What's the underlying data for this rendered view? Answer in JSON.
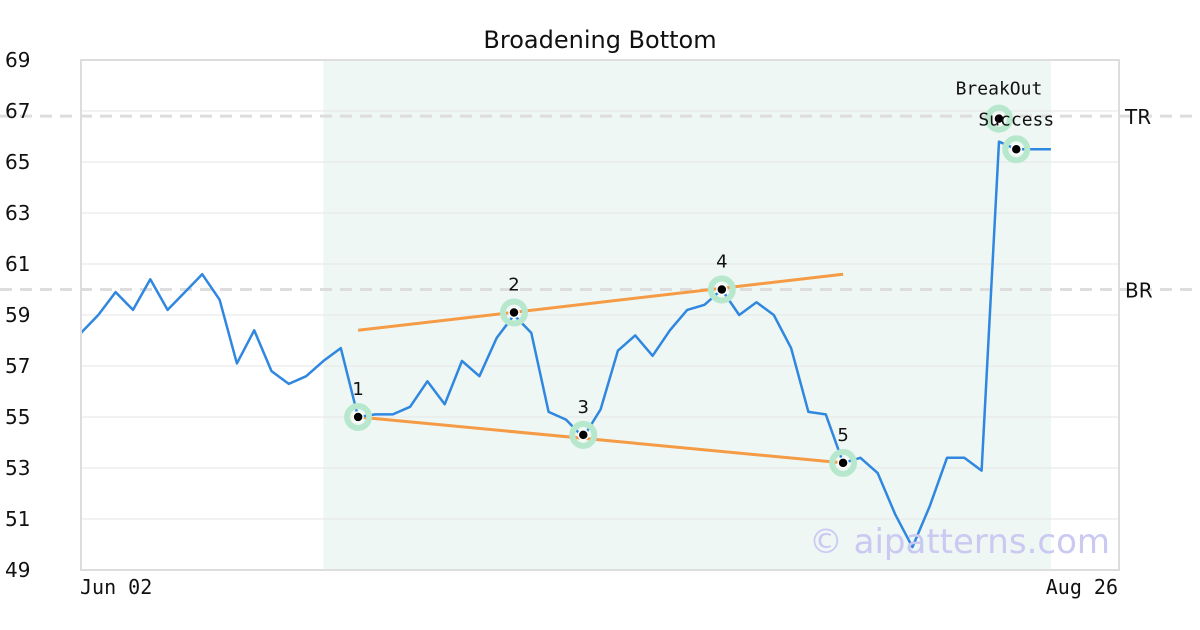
{
  "chart_data": {
    "type": "line",
    "title": "Broadening Bottom",
    "ylim": [
      49,
      69
    ],
    "yticks": [
      49,
      51,
      53,
      55,
      57,
      59,
      61,
      63,
      65,
      67,
      69
    ],
    "x_labels": {
      "start": "Jun 02",
      "end": "Aug 26"
    },
    "grid": "horizontal",
    "series": [
      {
        "color": "#2f87e0",
        "values": [
          58.3,
          59.0,
          59.9,
          59.2,
          60.4,
          59.2,
          59.9,
          60.6,
          59.6,
          57.1,
          58.4,
          56.8,
          56.3,
          56.6,
          57.2,
          57.7,
          55.0,
          55.1,
          55.1,
          55.4,
          56.4,
          55.5,
          57.2,
          56.6,
          58.1,
          59.0,
          58.3,
          55.2,
          54.9,
          54.2,
          55.3,
          57.6,
          58.2,
          57.4,
          58.4,
          59.2,
          59.4,
          60.0,
          59.0,
          59.5,
          59.0,
          57.7,
          55.2,
          55.1,
          53.2,
          53.4,
          52.8,
          51.2,
          49.9,
          51.5,
          53.4,
          53.4,
          52.9,
          65.8,
          65.5,
          65.5,
          65.5
        ]
      }
    ],
    "highlight_region": {
      "start_index": 14,
      "end_index": 56,
      "color": "#eef7f3"
    },
    "reference_lines": [
      {
        "label": "TR",
        "value": 66.8,
        "color": "#dddddd"
      },
      {
        "label": "BR",
        "value": 60.0,
        "color": "#dddddd"
      }
    ],
    "trendlines": [
      {
        "color": "#f59a45",
        "from": {
          "index": 16,
          "value": 58.4
        },
        "to": {
          "index": 44,
          "value": 60.6
        }
      },
      {
        "color": "#f59a45",
        "from": {
          "index": 16,
          "value": 55.0
        },
        "to": {
          "index": 44,
          "value": 53.2
        }
      }
    ],
    "pattern_points": [
      {
        "label": "1",
        "index": 16,
        "value": 55.0
      },
      {
        "label": "2",
        "index": 25,
        "value": 59.1
      },
      {
        "label": "3",
        "index": 29,
        "value": 54.3
      },
      {
        "label": "4",
        "index": 37,
        "value": 60.0
      },
      {
        "label": "5",
        "index": 44,
        "value": 53.2
      }
    ],
    "annotations": [
      {
        "label": "BreakOut",
        "index": 53,
        "value": 66.7
      },
      {
        "label": "Success",
        "index": 54,
        "value": 65.5
      }
    ],
    "point_marker_color": "#b7e8cd"
  },
  "watermark": "© aipatterns.com"
}
